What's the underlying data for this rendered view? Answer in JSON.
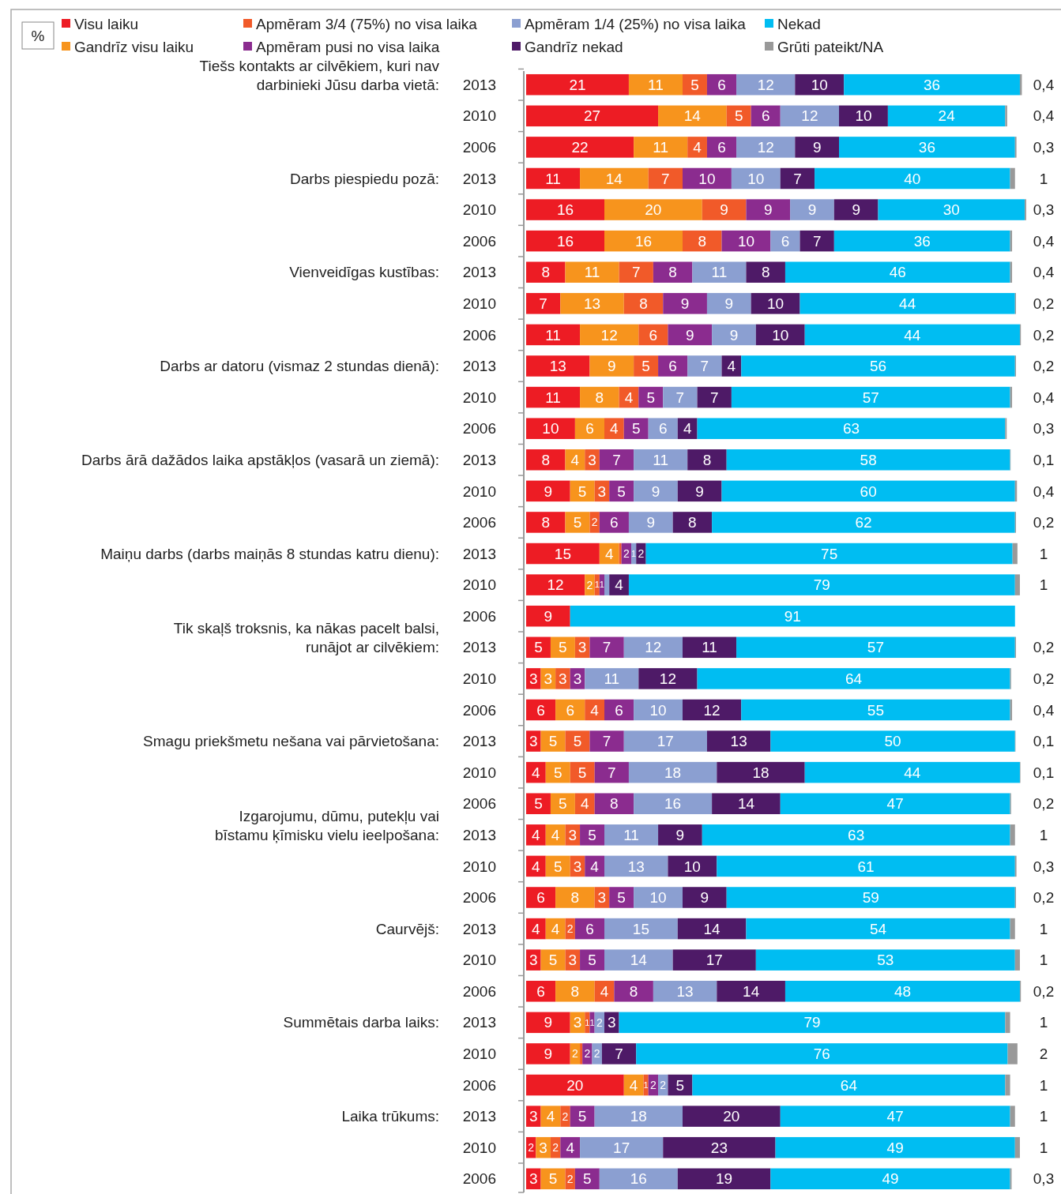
{
  "chart_data": {
    "type": "bar",
    "orientation": "horizontal",
    "stacked": true,
    "legend": "top",
    "categories": [
      "2013",
      "2010",
      "2006",
      "2013",
      "2010",
      "2006",
      "2013",
      "2010",
      "2006",
      "2013",
      "2010",
      "2006",
      "2013",
      "2010",
      "2006",
      "2013",
      "2010",
      "2006",
      "2013",
      "2010",
      "2006",
      "2013",
      "2010",
      "2006",
      "2013",
      "2010",
      "2006",
      "2013",
      "2010",
      "2006",
      "2013",
      "2010",
      "2006",
      "2013",
      "2010",
      "2006"
    ],
    "annotations": [
      "%",
      "Tiešs kontakts ar cilvēkiem, kuri nav\ndarbinieki Jūsu darba vietā:",
      "Darbs piespiedu pozā:",
      "Vienveidīgas kustības:",
      "Darbs ar datoru (vismaz 2 stundas dienā):",
      "Darbs ārā dažādos laika apstākļos (vasarā un ziemā):",
      "Maiņu darbs (darbs maiņās 8 stundas katru dienu):",
      "Tik skaļš troksnis, ka nākas pacelt balsi,\nrunājot ar cilvēkiem:",
      "Smagu priekšmetu nešana vai pārvietošana:",
      "Izgarojumu, dūmu, putekļu vai\nbīstamu ķīmisku vielu ieelpošana:",
      "Caurvējš:",
      "Summētais darba laiks:",
      "Laika trūkums:"
    ],
    "series": [
      {
        "name": "Visu laiku",
        "color": "#ed1c24",
        "values": [
          21,
          27,
          22,
          11,
          16,
          16,
          8,
          7,
          11,
          13,
          11,
          10,
          8,
          9,
          8,
          15,
          12,
          9,
          5,
          3,
          6,
          3,
          4,
          5,
          4,
          4,
          6,
          4,
          3,
          6,
          9,
          9,
          20,
          3,
          2,
          3
        ],
        "value_labels": [
          "21",
          "27",
          "22",
          "11",
          "16",
          "16",
          "8",
          "7",
          "11",
          "13",
          "11",
          "10",
          "8",
          "9",
          "8",
          "15",
          "12",
          "9",
          "5",
          "3",
          "6",
          "3",
          "4",
          "5",
          "4",
          "4",
          "6",
          "4",
          "3",
          "6",
          "9",
          "9",
          "20",
          "3",
          "2",
          "3"
        ]
      },
      {
        "name": "Gandrīz visu laiku",
        "color": "#f7941d",
        "values": [
          11,
          14,
          11,
          14,
          20,
          16,
          11,
          13,
          12,
          9,
          8,
          6,
          4,
          5,
          5,
          4,
          2,
          null,
          5,
          3,
          6,
          5,
          5,
          5,
          4,
          5,
          8,
          4,
          5,
          8,
          3,
          2,
          4,
          4,
          3,
          5
        ],
        "value_labels": [
          "11",
          "14",
          "11",
          "14",
          "20",
          "16",
          "11",
          "13",
          "12",
          "9",
          "8",
          "6",
          "4",
          "5",
          "5",
          "4",
          "2",
          null,
          "5",
          "3",
          "6",
          "5",
          "5",
          "5",
          "4",
          "5",
          "8",
          "4",
          "5",
          "8",
          "3",
          "2",
          "4",
          "4",
          "3",
          "5"
        ]
      },
      {
        "name": "Apmēram 3/4 (75%) no visa laika",
        "color": "#f15a29",
        "values": [
          5,
          5,
          4,
          7,
          9,
          8,
          7,
          8,
          6,
          5,
          4,
          4,
          3,
          3,
          2,
          0.5,
          1,
          null,
          3,
          3,
          4,
          5,
          5,
          4,
          3,
          3,
          3,
          2,
          3,
          4,
          1,
          0.5,
          1,
          2,
          2,
          2
        ],
        "value_labels": [
          "5",
          "5",
          "4",
          "7",
          "9",
          "8",
          "7",
          "8",
          "6",
          "5",
          "4",
          "4",
          "3",
          "3",
          "2",
          null,
          "1",
          null,
          "3",
          "3",
          "4",
          "5",
          "5",
          "4",
          "3",
          "3",
          "3",
          "2",
          "3",
          "4",
          "1",
          null,
          "1",
          "2",
          "2",
          "2"
        ]
      },
      {
        "name": "Apmēram pusi no visa laika",
        "color": "#8b2c8f",
        "values": [
          6,
          6,
          6,
          10,
          9,
          10,
          8,
          9,
          9,
          6,
          5,
          5,
          7,
          5,
          6,
          2,
          1,
          null,
          7,
          3,
          6,
          7,
          7,
          8,
          5,
          4,
          5,
          6,
          5,
          8,
          1,
          2,
          2,
          5,
          4,
          5
        ],
        "value_labels": [
          "6",
          "6",
          "6",
          "10",
          "9",
          "10",
          "8",
          "9",
          "9",
          "6",
          "5",
          "5",
          "7",
          "5",
          "6",
          "2",
          "1",
          null,
          "7",
          "3",
          "6",
          "7",
          "7",
          "8",
          "5",
          "4",
          "5",
          "6",
          "5",
          "8",
          "1",
          "2",
          "2",
          "5",
          "4",
          "5"
        ]
      },
      {
        "name": "Apmēram 1/4 (25%) no visa laika",
        "color": "#8b9fd1",
        "values": [
          12,
          12,
          12,
          10,
          9,
          6,
          11,
          9,
          9,
          7,
          7,
          6,
          11,
          9,
          9,
          1,
          1,
          null,
          12,
          11,
          10,
          17,
          18,
          16,
          11,
          13,
          10,
          15,
          14,
          13,
          2,
          2,
          2,
          18,
          17,
          16
        ],
        "value_labels": [
          "12",
          "12",
          "12",
          "10",
          "9",
          "6",
          "11",
          "9",
          "9",
          "7",
          "7",
          "6",
          "11",
          "9",
          "9",
          "1",
          null,
          null,
          "12",
          "11",
          "10",
          "17",
          "18",
          "16",
          "11",
          "13",
          "10",
          "15",
          "14",
          "13",
          "2",
          "2",
          "2",
          "18",
          "17",
          "16"
        ]
      },
      {
        "name": "Gandrīz nekad",
        "color": "#4e1a67",
        "values": [
          10,
          10,
          9,
          7,
          9,
          7,
          8,
          10,
          10,
          4,
          7,
          4,
          8,
          9,
          8,
          2,
          4,
          null,
          11,
          12,
          12,
          13,
          18,
          14,
          9,
          10,
          9,
          14,
          17,
          14,
          3,
          7,
          5,
          20,
          23,
          19
        ],
        "value_labels": [
          "10",
          "10",
          "9",
          "7",
          "9",
          "7",
          "8",
          "10",
          "10",
          "4",
          "7",
          "4",
          "8",
          "9",
          "8",
          "2",
          "4",
          null,
          "11",
          "12",
          "12",
          "13",
          "18",
          "14",
          "9",
          "10",
          "9",
          "14",
          "17",
          "14",
          "3",
          "7",
          "5",
          "20",
          "23",
          "19"
        ]
      },
      {
        "name": "Nekad",
        "color": "#00bdf2",
        "values": [
          36,
          24,
          36,
          40,
          30,
          36,
          46,
          44,
          44,
          56,
          57,
          63,
          58,
          60,
          62,
          75,
          79,
          91,
          57,
          64,
          55,
          50,
          44,
          47,
          63,
          61,
          59,
          54,
          53,
          48,
          79,
          76,
          64,
          47,
          49,
          49
        ],
        "value_labels": [
          "36",
          "24",
          "36",
          "40",
          "30",
          "36",
          "46",
          "44",
          "44",
          "56",
          "57",
          "63",
          "58",
          "60",
          "62",
          "75",
          "79",
          "91",
          "57",
          "64",
          "55",
          "50",
          "44",
          "47",
          "63",
          "61",
          "59",
          "54",
          "53",
          "48",
          "79",
          "76",
          "64",
          "47",
          "49",
          "49"
        ]
      },
      {
        "name": "Grūti pateikt/NA",
        "color": "#999999",
        "values": [
          0.4,
          0.4,
          0.3,
          1,
          0.3,
          0.4,
          0.4,
          0.2,
          0.2,
          0.2,
          0.4,
          0.3,
          0.1,
          0.4,
          0.2,
          1,
          1,
          null,
          0.2,
          0.2,
          0.4,
          0.1,
          0.1,
          0.2,
          1,
          0.3,
          0.2,
          1,
          1,
          0.2,
          1,
          2,
          1,
          1,
          1,
          0.3
        ],
        "value_labels": [
          "0,4",
          "0,4",
          "0,3",
          "1",
          "0,3",
          "0,4",
          "0,4",
          "0,2",
          "0,2",
          "0,2",
          "0,4",
          "0,3",
          "0,1",
          "0,4",
          "0,2",
          "1",
          "1",
          null,
          "0,2",
          "0,2",
          "0,4",
          "0,1",
          "0,1",
          "0,2",
          "1",
          "0,3",
          "0,2",
          "1",
          "1",
          "0,2",
          "1",
          "2",
          "1",
          "1",
          "1",
          "0,3"
        ]
      }
    ]
  }
}
